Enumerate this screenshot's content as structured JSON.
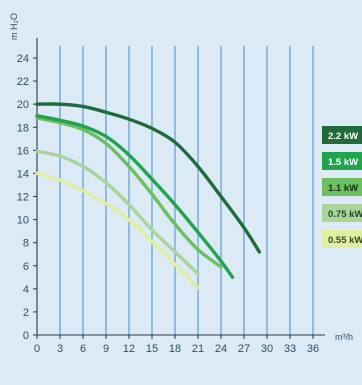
{
  "chart_data": {
    "type": "line",
    "xlabel": "m³/h",
    "ylabel": "m H₂O",
    "xlim": [
      0,
      36
    ],
    "ylim": [
      0,
      24
    ],
    "xticks": [
      0,
      3,
      6,
      9,
      12,
      15,
      18,
      21,
      24,
      27,
      30,
      33,
      36
    ],
    "yticks": [
      0,
      2,
      4,
      6,
      8,
      10,
      12,
      14,
      16,
      18,
      20,
      22,
      24
    ],
    "grid": "vertical",
    "legend_placement": "right",
    "series": [
      {
        "name": "2.2 kW",
        "color": "#1f6b3a",
        "text_color": "#ffffff",
        "points": [
          [
            0,
            20
          ],
          [
            3,
            20
          ],
          [
            6,
            19.8
          ],
          [
            9,
            19.3
          ],
          [
            12,
            18.7
          ],
          [
            15,
            17.9
          ],
          [
            18,
            16.7
          ],
          [
            21,
            14.6
          ],
          [
            24,
            12.0
          ],
          [
            27,
            9.3
          ],
          [
            29,
            7.2
          ]
        ]
      },
      {
        "name": "1.5 kW",
        "color": "#22a34d",
        "text_color": "#ffffff",
        "points": [
          [
            0,
            19.0
          ],
          [
            3,
            18.6
          ],
          [
            6,
            18.1
          ],
          [
            9,
            17.2
          ],
          [
            12,
            15.6
          ],
          [
            15,
            13.5
          ],
          [
            18,
            11.3
          ],
          [
            21,
            8.9
          ],
          [
            24,
            6.4
          ],
          [
            25.5,
            5.0
          ]
        ]
      },
      {
        "name": "1.1 kW",
        "color": "#6cbf5f",
        "text_color": "#13311a",
        "points": [
          [
            0,
            18.8
          ],
          [
            3,
            18.4
          ],
          [
            6,
            17.8
          ],
          [
            9,
            16.6
          ],
          [
            12,
            14.6
          ],
          [
            15,
            12.2
          ],
          [
            18,
            9.6
          ],
          [
            21,
            7.4
          ],
          [
            24,
            5.9
          ]
        ]
      },
      {
        "name": "0.75 kW",
        "color": "#a9d49a",
        "text_color": "#24452a",
        "points": [
          [
            0,
            15.9
          ],
          [
            3,
            15.5
          ],
          [
            6,
            14.6
          ],
          [
            9,
            13.2
          ],
          [
            12,
            11.3
          ],
          [
            15,
            9.1
          ],
          [
            18,
            7.2
          ],
          [
            21,
            5.3
          ]
        ]
      },
      {
        "name": "0.55 kW",
        "color": "#e1eda0",
        "text_color": "#3b4a1e",
        "points": [
          [
            0,
            14.0
          ],
          [
            3,
            13.4
          ],
          [
            6,
            12.5
          ],
          [
            9,
            11.4
          ],
          [
            12,
            10.0
          ],
          [
            15,
            8.1
          ],
          [
            18,
            6.1
          ],
          [
            21,
            4.1
          ]
        ]
      }
    ]
  }
}
